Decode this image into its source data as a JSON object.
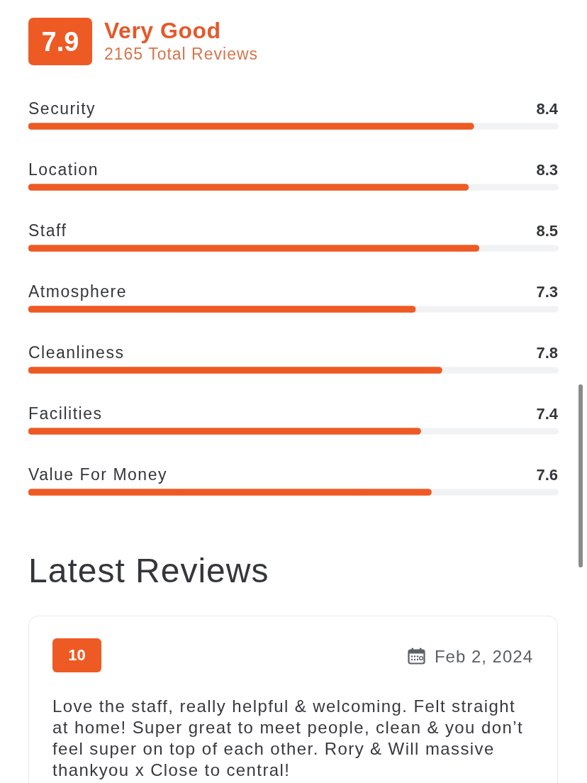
{
  "chart_data": [
    {
      "type": "bar",
      "orientation": "horizontal",
      "title": "Very Good",
      "subtitle": "2165 Total Reviews",
      "annotations": [
        "7.9"
      ],
      "categories": [
        "Security",
        "Location",
        "Staff",
        "Atmosphere",
        "Cleanliness",
        "Facilities",
        "Value For Money"
      ],
      "values": [
        8.4,
        8.3,
        8.5,
        7.3,
        7.8,
        7.4,
        7.6
      ],
      "color": "#ee5a24",
      "xlim": [
        0,
        10
      ],
      "data_labels": true,
      "tick_labels": "y"
    },
    {
      "type": "other",
      "title": "Latest Reviews",
      "annotations": [
        "10",
        "Feb 2, 2024",
        "Love the staff, really helpful & welcoming. Felt straight at home! Super great to meet people, clean & you don’t feel super on top of each other. Rory & Will massive thankyou x Close to central!"
      ]
    }
  ]
}
